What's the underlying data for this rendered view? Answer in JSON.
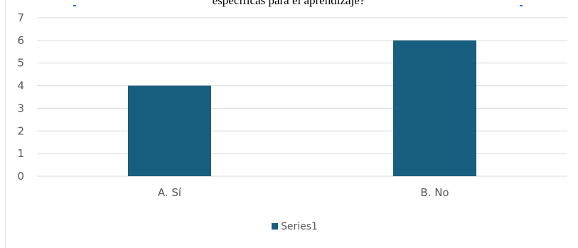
{
  "chart_data": {
    "type": "bar",
    "title": "específicas para el aprendizaje?",
    "categories": [
      "A. Sí",
      "B. No"
    ],
    "series": [
      {
        "name": "Series1",
        "values": [
          4,
          6
        ],
        "color": "#175e7f"
      }
    ],
    "xlabel": "",
    "ylabel": "",
    "ylim": [
      0,
      7
    ],
    "yticks": [
      "0",
      "1",
      "2",
      "3",
      "4",
      "5",
      "6",
      "7"
    ],
    "grid": true,
    "legend": "bottom",
    "colors": {
      "grid": "#d9d9d9",
      "axis_text": "#595959",
      "frame": "#d9d9d9",
      "title_accent": "#2e75b6"
    }
  }
}
